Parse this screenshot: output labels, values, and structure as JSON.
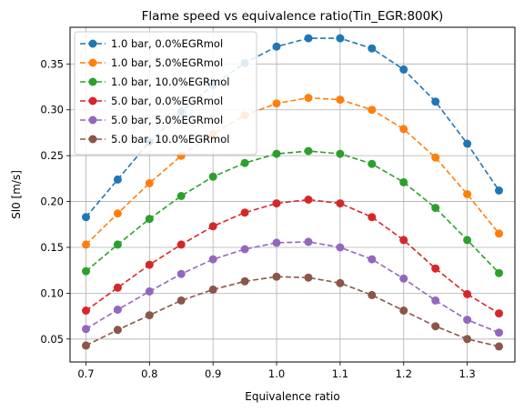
{
  "chart_data": {
    "type": "line",
    "title": "Flame speed vs equivalence ratio(Tin_EGR:800K)",
    "xlabel": "Equivalence ratio",
    "ylabel": "Sl0 [m/s]",
    "xlim": [
      0.675,
      1.375
    ],
    "ylim": [
      0.025,
      0.39
    ],
    "x_ticks": [
      0.7,
      0.8,
      0.9,
      1.0,
      1.1,
      1.2,
      1.3
    ],
    "x_tick_labels": [
      "0.7",
      "0.8",
      "0.9",
      "1.0",
      "1.1",
      "1.2",
      "1.3"
    ],
    "y_ticks": [
      0.05,
      0.1,
      0.15,
      0.2,
      0.25,
      0.3,
      0.35
    ],
    "y_tick_labels": [
      "0.05",
      "0.10",
      "0.15",
      "0.20",
      "0.25",
      "0.30",
      "0.35"
    ],
    "grid": true,
    "legend_position": "top-left",
    "x": [
      0.7,
      0.75,
      0.8,
      0.85,
      0.9,
      0.95,
      1.0,
      1.05,
      1.1,
      1.15,
      1.2,
      1.25,
      1.3,
      1.35
    ],
    "series": [
      {
        "name": "1.0 bar, 0.0%EGRmol",
        "color": "#1f77b4",
        "values": [
          0.183,
          0.224,
          0.265,
          0.298,
          0.327,
          0.351,
          0.369,
          0.378,
          0.378,
          0.367,
          0.344,
          0.309,
          0.263,
          0.212
        ]
      },
      {
        "name": "1.0 bar, 5.0%EGRmol",
        "color": "#ff7f0e",
        "values": [
          0.153,
          0.187,
          0.22,
          0.25,
          0.274,
          0.294,
          0.307,
          0.313,
          0.311,
          0.3,
          0.279,
          0.248,
          0.208,
          0.165
        ]
      },
      {
        "name": "1.0 bar, 10.0%EGRmol",
        "color": "#2ca02c",
        "values": [
          0.124,
          0.153,
          0.181,
          0.206,
          0.227,
          0.242,
          0.252,
          0.255,
          0.252,
          0.241,
          0.221,
          0.193,
          0.158,
          0.122
        ]
      },
      {
        "name": "5.0 bar, 0.0%EGRmol",
        "color": "#d62728",
        "values": [
          0.081,
          0.106,
          0.131,
          0.153,
          0.173,
          0.188,
          0.198,
          0.202,
          0.198,
          0.183,
          0.158,
          0.127,
          0.099,
          0.078
        ]
      },
      {
        "name": "5.0 bar, 5.0%EGRmol",
        "color": "#9467bd",
        "values": [
          0.061,
          0.082,
          0.102,
          0.121,
          0.137,
          0.148,
          0.155,
          0.156,
          0.15,
          0.137,
          0.116,
          0.092,
          0.071,
          0.057
        ]
      },
      {
        "name": "5.0 bar, 10.0%EGRmol",
        "color": "#8c564b",
        "values": [
          0.043,
          0.06,
          0.076,
          0.092,
          0.104,
          0.113,
          0.118,
          0.117,
          0.111,
          0.098,
          0.081,
          0.064,
          0.05,
          0.042
        ]
      }
    ]
  }
}
